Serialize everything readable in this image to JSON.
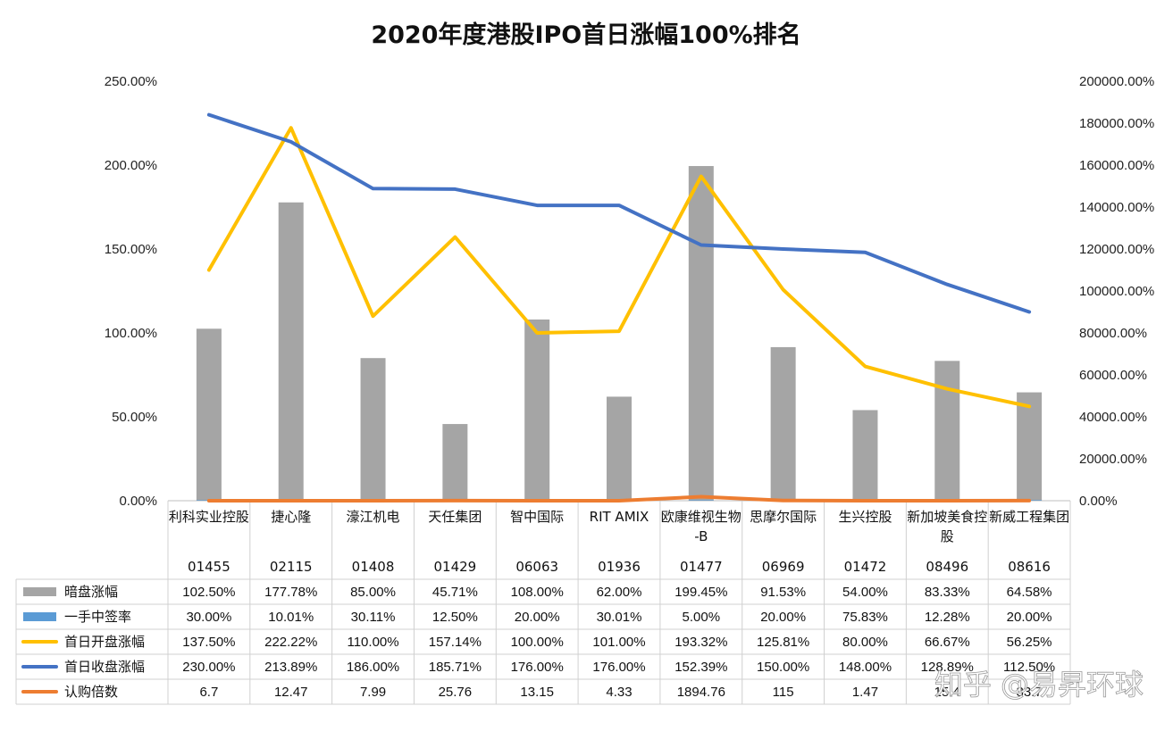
{
  "chart_data": {
    "type": "bar",
    "title": "2020年度港股IPO首日涨幅100%排名",
    "categories": [
      "利科实业控股",
      "捷心隆",
      "濠江机电",
      "天任集团",
      "智中国际",
      "RIT AMIX",
      "欧康维视生物-B",
      "思摩尔国际",
      "生兴控股",
      "新加坡美食控股",
      "新威工程集团"
    ],
    "codes": [
      "01455",
      "02115",
      "01408",
      "01429",
      "06063",
      "01936",
      "01477",
      "06969",
      "01472",
      "08496",
      "08616"
    ],
    "y_left": {
      "ticks": [
        "0.00%",
        "50.00%",
        "100.00%",
        "150.00%",
        "200.00%",
        "250.00%"
      ],
      "ylim": [
        0,
        250
      ]
    },
    "y_right": {
      "ticks": [
        "0.00%",
        "20000.00%",
        "40000.00%",
        "60000.00%",
        "80000.00%",
        "100000.00%",
        "120000.00%",
        "140000.00%",
        "160000.00%",
        "180000.00%",
        "200000.00%"
      ],
      "ylim": [
        0,
        200000
      ]
    },
    "grid": false,
    "legend": "data-table",
    "series": [
      {
        "name": "暗盘涨幅",
        "kind": "bar",
        "axis": "left",
        "color": "#a5a5a5",
        "values": [
          102.5,
          177.78,
          85.0,
          45.71,
          108.0,
          62.0,
          199.45,
          91.53,
          54.0,
          83.33,
          64.58
        ],
        "labels": [
          "102.50%",
          "177.78%",
          "85.00%",
          "45.71%",
          "108.00%",
          "62.00%",
          "199.45%",
          "91.53%",
          "54.00%",
          "83.33%",
          "64.58%"
        ]
      },
      {
        "name": "一手中签率",
        "kind": "bar",
        "axis": "right",
        "color": "#5b9bd5",
        "values": [
          30.0,
          10.01,
          30.11,
          12.5,
          20.0,
          30.01,
          5.0,
          20.0,
          75.83,
          12.28,
          20.0
        ],
        "labels": [
          "30.00%",
          "10.01%",
          "30.11%",
          "12.50%",
          "20.00%",
          "30.01%",
          "5.00%",
          "20.00%",
          "75.83%",
          "12.28%",
          "20.00%"
        ]
      },
      {
        "name": "首日开盘涨幅",
        "kind": "line",
        "axis": "left",
        "color": "#ffc000",
        "values": [
          137.5,
          222.22,
          110.0,
          157.14,
          100.0,
          101.0,
          193.32,
          125.81,
          80.0,
          66.67,
          56.25
        ],
        "labels": [
          "137.50%",
          "222.22%",
          "110.00%",
          "157.14%",
          "100.00%",
          "101.00%",
          "193.32%",
          "125.81%",
          "80.00%",
          "66.67%",
          "56.25%"
        ]
      },
      {
        "name": "首日收盘涨幅",
        "kind": "line",
        "axis": "left",
        "color": "#4472c4",
        "values": [
          230.0,
          213.89,
          186.0,
          185.71,
          176.0,
          176.0,
          152.39,
          150.0,
          148.0,
          128.89,
          112.5
        ],
        "labels": [
          "230.00%",
          "213.89%",
          "186.00%",
          "185.71%",
          "176.00%",
          "176.00%",
          "152.39%",
          "150.00%",
          "148.00%",
          "128.89%",
          "112.50%"
        ]
      },
      {
        "name": "认购倍数",
        "kind": "line",
        "axis": "right",
        "color": "#ed7d31",
        "values": [
          6.7,
          12.47,
          7.99,
          25.76,
          13.15,
          4.33,
          1894.76,
          115,
          1.47,
          15.4,
          33.7
        ],
        "labels": [
          "6.7",
          "12.47",
          "7.99",
          "25.76",
          "13.15",
          "4.33",
          "1894.76",
          "115",
          "1.47",
          "15.4",
          "33.7"
        ]
      }
    ]
  },
  "watermark": "知乎 @易昇环球"
}
